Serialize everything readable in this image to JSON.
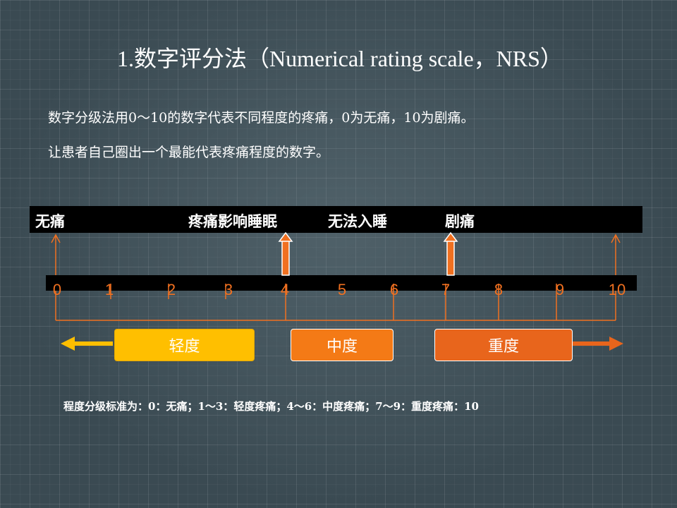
{
  "slide": {
    "title": "1.数字评分法（Numerical rating scale，NRS）",
    "description_line1": "数字分级法用0～10的数字代表不同程度的疼痛，0为无痛，10为剧痛。",
    "description_line2": "让患者自己圈出一个最能代表疼痛程度的数字。",
    "footer_note": "程度分级标准为：0：无痛；1～3：轻度疼痛；4～6：中度疼痛；7～9：重度疼痛：10"
  },
  "scale": {
    "top_labels": [
      "无痛",
      "疼痛影响睡眠",
      "无法入睡",
      "剧痛"
    ],
    "numbers": [
      "0",
      "1",
      "2",
      "3",
      "4",
      "5",
      "6",
      "7",
      "8",
      "9",
      "10"
    ],
    "categories": [
      "轻度",
      "中度",
      "重度"
    ]
  },
  "colors": {
    "accent_orange": "#f07020",
    "mild_yellow": "#ffbf00",
    "moderate_orange": "#f47a16",
    "severe_orange": "#e8651c",
    "bar_black": "#000000"
  }
}
